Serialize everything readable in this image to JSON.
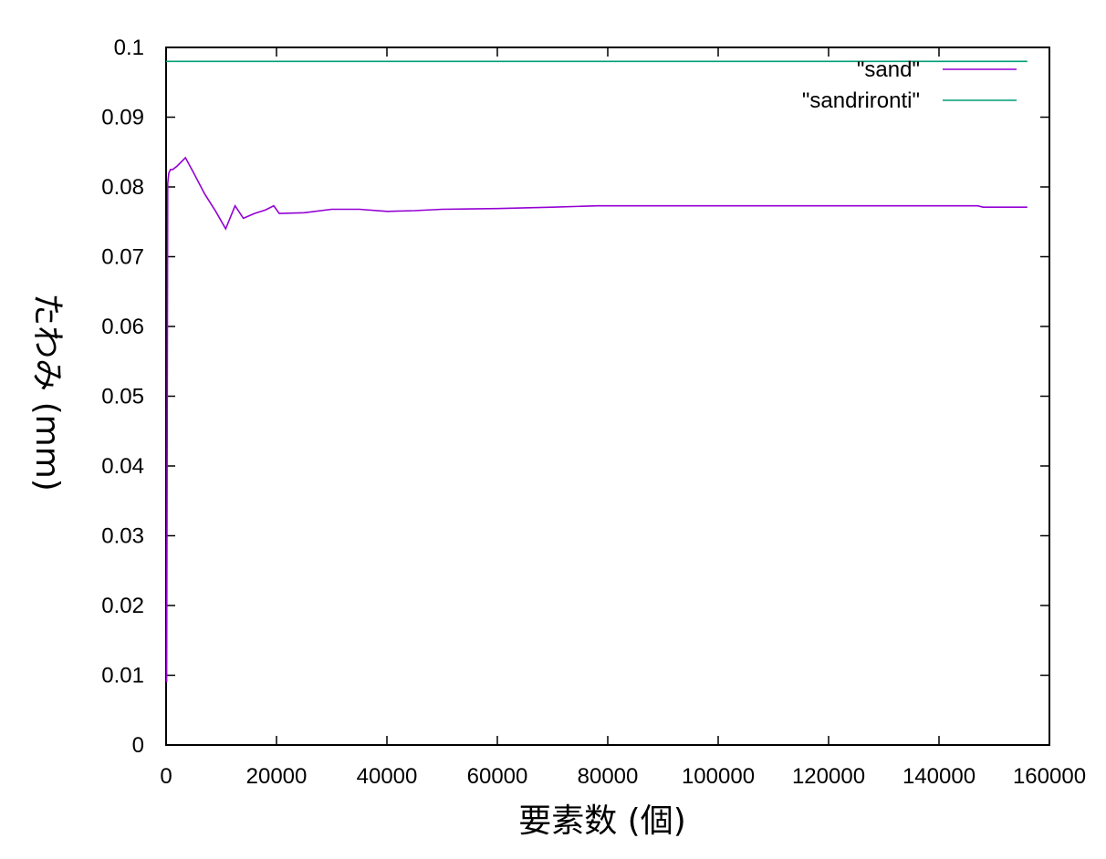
{
  "chart_data": {
    "type": "line",
    "title": "",
    "xlabel": "要素数 (個)",
    "ylabel": "たわみ (mm)",
    "xlim": [
      0,
      160000
    ],
    "ylim": [
      0,
      0.1
    ],
    "x_ticks": [
      0,
      20000,
      40000,
      60000,
      80000,
      100000,
      120000,
      140000,
      160000
    ],
    "x_tick_labels": [
      "0",
      "20000",
      "40000",
      "60000",
      "80000",
      "100000",
      "120000",
      "140000",
      "160000"
    ],
    "y_ticks": [
      0,
      0.01,
      0.02,
      0.03,
      0.04,
      0.05,
      0.06,
      0.07,
      0.08,
      0.09,
      0.1
    ],
    "y_tick_labels": [
      "0",
      "0.01",
      "0.02",
      "0.03",
      "0.04",
      "0.05",
      "0.06",
      "0.07",
      "0.08",
      "0.09",
      "0.1"
    ],
    "grid": false,
    "legend_position": "top-right",
    "series": [
      {
        "name": "\"sand\"",
        "color": "#9400d3",
        "x": [
          100,
          300,
          500,
          800,
          1200,
          2000,
          3500,
          5000,
          7000,
          9000,
          10800,
          12500,
          14000,
          16000,
          18000,
          19500,
          20500,
          25000,
          30000,
          35000,
          40000,
          45000,
          50000,
          60000,
          70000,
          78000,
          90000,
          100000,
          120000,
          147000,
          148000,
          156000
        ],
        "y": [
          0.009,
          0.0805,
          0.082,
          0.0825,
          0.0825,
          0.083,
          0.0842,
          0.082,
          0.079,
          0.0765,
          0.074,
          0.0773,
          0.0755,
          0.0762,
          0.0767,
          0.0773,
          0.0762,
          0.0763,
          0.0768,
          0.0768,
          0.0765,
          0.0766,
          0.0768,
          0.0769,
          0.0771,
          0.0773,
          0.0773,
          0.0773,
          0.0773,
          0.0773,
          0.0771,
          0.0771
        ]
      },
      {
        "name": "\"sandrironti\"",
        "color": "#009e73",
        "x": [
          0,
          156000
        ],
        "y": [
          0.098,
          0.098
        ]
      }
    ]
  }
}
